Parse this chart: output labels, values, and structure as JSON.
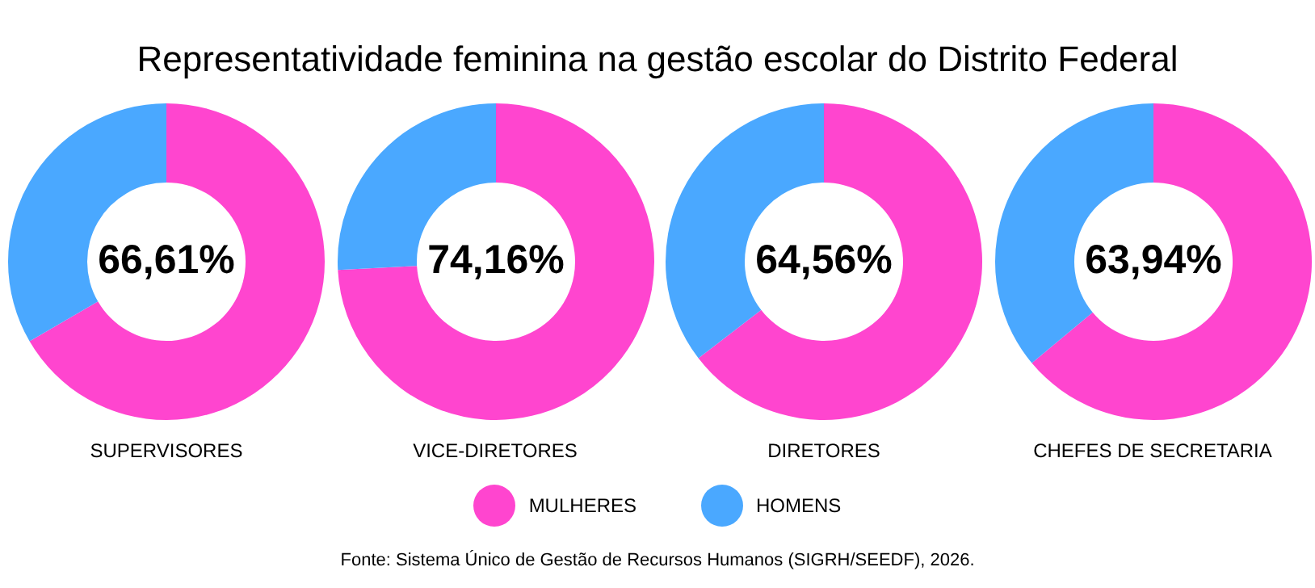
{
  "chart_data": [
    {
      "type": "donut",
      "title": "Representatividade feminina na gestão escolar do Distrito Federal",
      "xlabel": "SUPERVISORES",
      "categories": [
        "MULHERES",
        "HOMENS"
      ],
      "values": [
        66.61,
        33.39
      ],
      "colors": [
        "#ff45cf",
        "#4aa8ff"
      ],
      "value_labels": [
        "66,61%",
        null
      ],
      "legend": "bottom"
    },
    {
      "type": "donut",
      "xlabel": "VICE-DIRETORES",
      "categories": [
        null,
        null
      ],
      "values": [
        74.16,
        25.84
      ],
      "colors": [
        "#ff45cf",
        "#4aa8ff"
      ],
      "value_labels": [
        "74,16%",
        null
      ]
    },
    {
      "type": "donut",
      "xlabel": "DIRETORES",
      "categories": [
        null,
        null
      ],
      "values": [
        64.56,
        35.44
      ],
      "colors": [
        "#ff45cf",
        "#4aa8ff"
      ],
      "value_labels": [
        "64,56%",
        null
      ]
    },
    {
      "type": "donut",
      "xlabel": "CHEFES DE SECRETARIA",
      "categories": [
        null,
        null
      ],
      "values": [
        63.94,
        36.06
      ],
      "colors": [
        "#ff45cf",
        "#4aa8ff"
      ],
      "value_labels": [
        "63,94%",
        null
      ],
      "annotations": [
        "Fonte: Sistema Único de Gestão de Recursos Humanos (SIGRH/SEEDF), 2026."
      ]
    }
  ]
}
